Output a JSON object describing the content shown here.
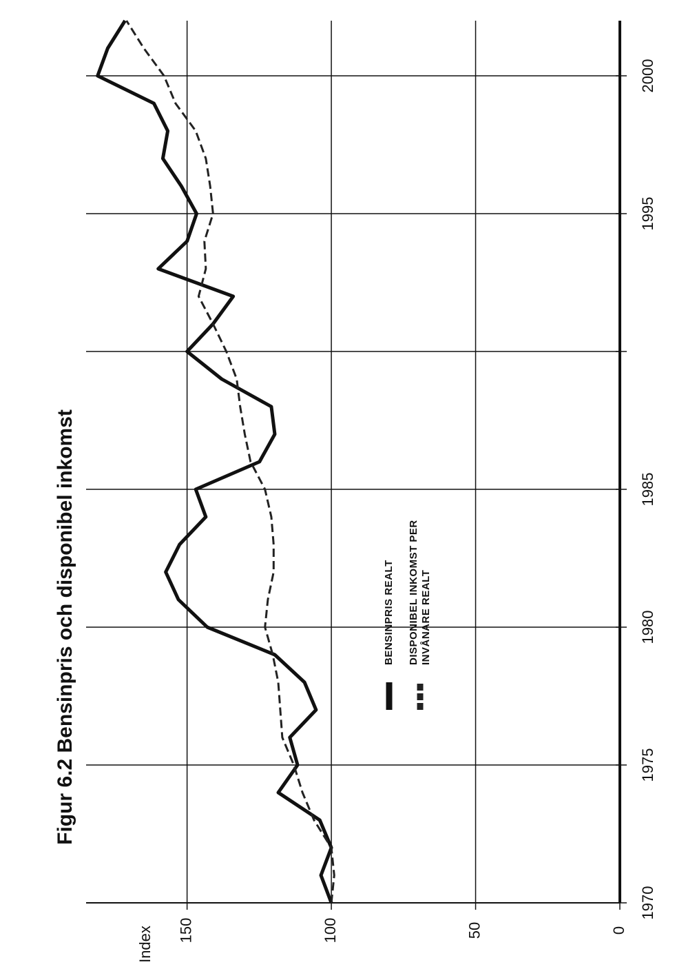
{
  "chart_data": {
    "type": "line",
    "title": "Figur 6.2  Bensinpris och disponibel inkomst",
    "ylabel": "Index",
    "x": [
      1970,
      1971,
      1972,
      1973,
      1974,
      1975,
      1976,
      1977,
      1978,
      1979,
      1980,
      1981,
      1982,
      1983,
      1984,
      1985,
      1986,
      1987,
      1988,
      1989,
      1990,
      1991,
      1992,
      1993,
      1994,
      1995,
      1996,
      1997,
      1998,
      1999,
      2000,
      2001,
      2002
    ],
    "series": [
      {
        "name": "BENSINPRIS REALT",
        "color": "#111111",
        "dash": false,
        "values": [
          100,
          103.6,
          100,
          104,
          118.4,
          111.7,
          114.4,
          105.3,
          109.3,
          119.6,
          143,
          153,
          157.4,
          152.6,
          143.5,
          147,
          124.9,
          119.6,
          120.8,
          138,
          150,
          141,
          134,
          160,
          150,
          146.7,
          152,
          158.4,
          156.7,
          161.5,
          181,
          177.5,
          171.5
        ]
      },
      {
        "name": "DISPONIBEL INKOMST PER INVÅNARE REALT",
        "color": "#222222",
        "dash": true,
        "values": [
          100,
          99,
          100,
          106,
          110,
          113,
          117,
          117.7,
          118.4,
          120.3,
          123,
          122,
          120,
          120,
          120.8,
          123,
          128,
          130,
          131.6,
          132.8,
          136.4,
          141,
          146,
          143.5,
          144,
          141,
          142,
          143.5,
          147,
          154,
          158,
          165,
          171
        ]
      }
    ],
    "xlim": [
      1970,
      2002
    ],
    "xticks": [
      1970,
      1975,
      1980,
      1985,
      {
        "value": 1990,
        "label": null
      },
      1995,
      2000
    ],
    "ylim": [
      0,
      185
    ],
    "yticks": [
      0,
      50,
      100,
      150
    ],
    "grid": true
  }
}
